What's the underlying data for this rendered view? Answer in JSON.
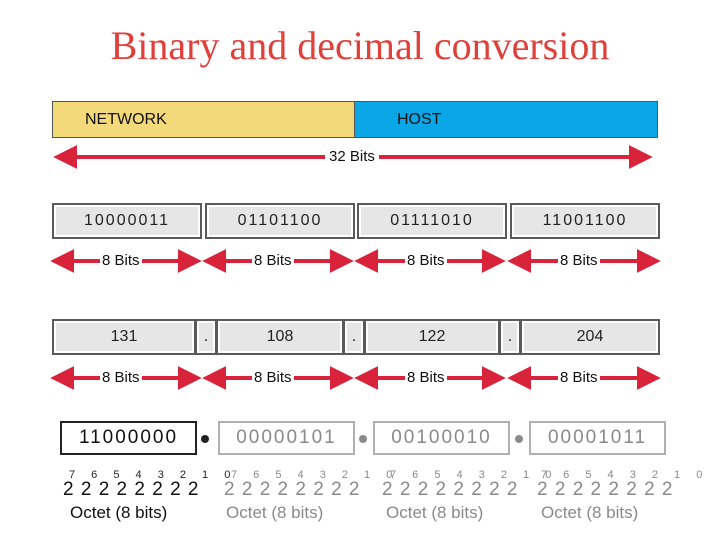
{
  "title": "Binary and decimal conversion",
  "address_bar": {
    "network_label": "NETWORK",
    "host_label": "HOST",
    "total_label": "32 Bits"
  },
  "binary_octets": [
    "10000011",
    "01101100",
    "01111010",
    "11001100"
  ],
  "octet_bits_label": "8 Bits",
  "decimal_octets": [
    "131",
    "108",
    "122",
    "204"
  ],
  "dot": ".",
  "example_octets": [
    {
      "bits": "11000000",
      "powers": "7 6 5 4 3 2 1 0",
      "base": "2 2 2 2 2 2 2 2",
      "caption": "Octet (8 bits)",
      "highlight": true
    },
    {
      "bits": "00000101",
      "powers": "7 6 5 4 3 2 1 0",
      "base": "2 2 2 2 2 2 2 2",
      "caption": "Octet (8 bits)",
      "highlight": false
    },
    {
      "bits": "00100010",
      "powers": "7 6 5 4 3 2 1 0",
      "base": "2 2 2 2 2 2 2 2",
      "caption": "Octet (8 bits)",
      "highlight": false
    },
    {
      "bits": "00001011",
      "powers": "7 6 5 4 3 2 1 0",
      "base": "2 2 2 2 2 2 2 2",
      "caption": "Octet (8 bits)",
      "highlight": false
    }
  ],
  "colors": {
    "title": "#e0403a",
    "network": "#f4d97a",
    "host": "#0aa6e6",
    "arrow_red": "#d9233a",
    "faded": "#8a8a8a"
  }
}
